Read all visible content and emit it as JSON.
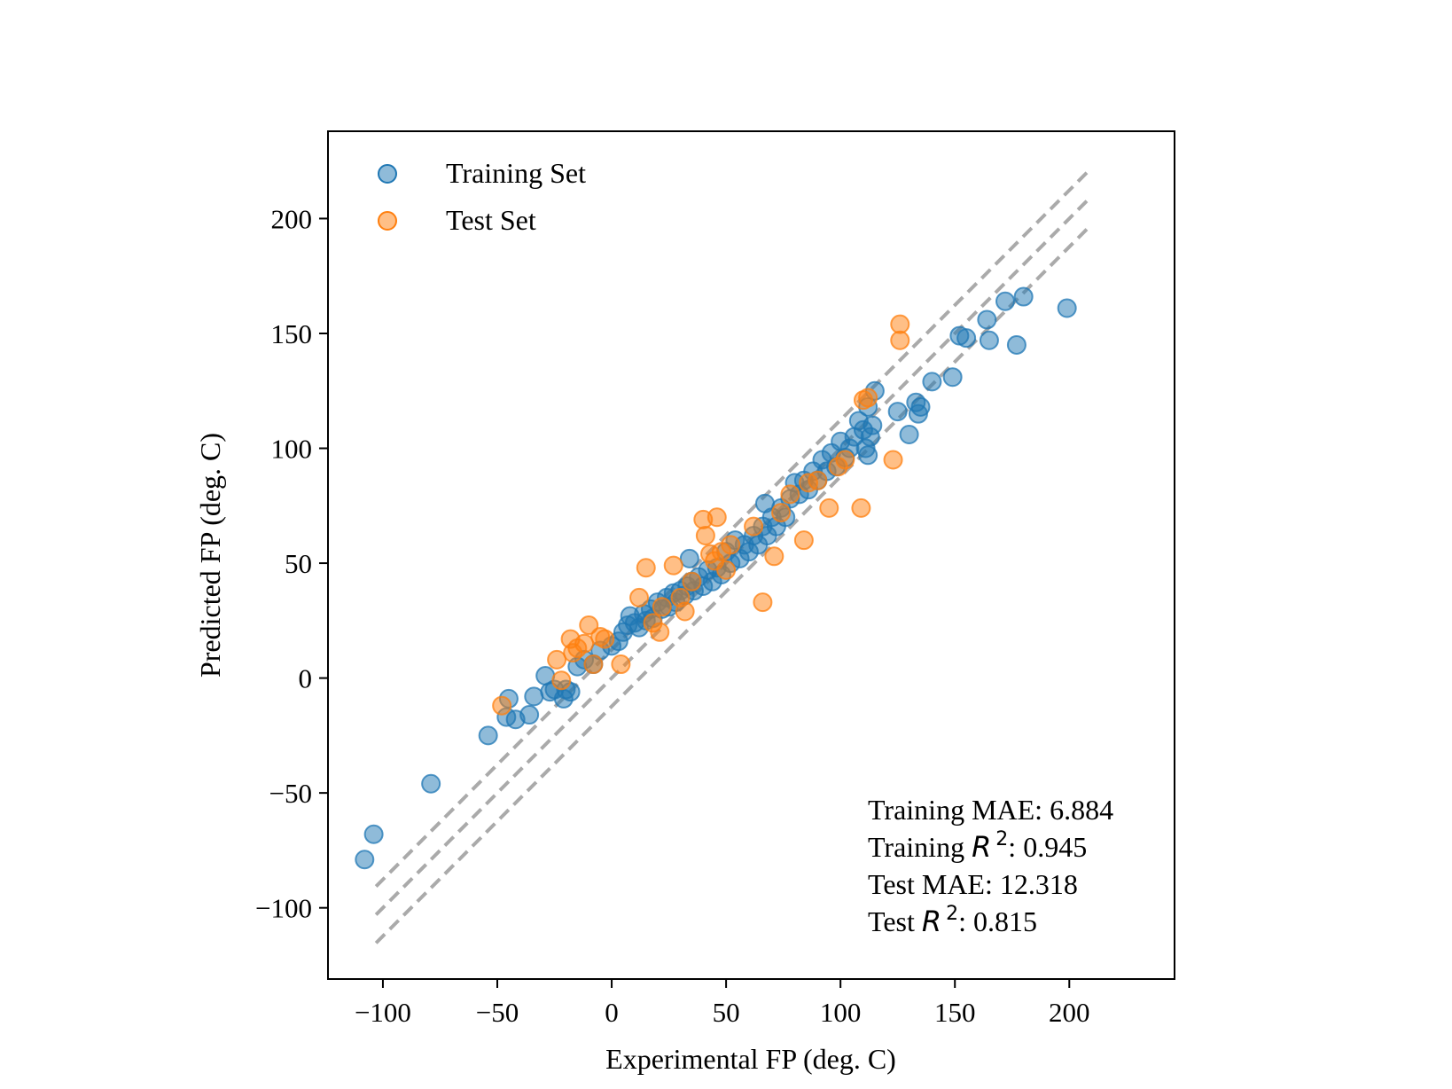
{
  "chart_data": {
    "type": "scatter",
    "title": "",
    "xlabel": "Experimental FP (deg. C)",
    "ylabel": "Predicted FP (deg. C)",
    "xlim": [
      -124,
      246
    ],
    "ylim": [
      -131,
      238
    ],
    "xticks": [
      -100,
      -50,
      0,
      50,
      100,
      150,
      200
    ],
    "yticks": [
      -100,
      -50,
      0,
      50,
      100,
      150,
      200
    ],
    "xtick_labels": [
      "−100",
      "−50",
      "0",
      "50",
      "100",
      "150",
      "200"
    ],
    "ytick_labels": [
      "−100",
      "−50",
      "0",
      "50",
      "100",
      "150",
      "200"
    ],
    "grid": false,
    "legend_position": "top-left",
    "reference_lines": [
      {
        "style": "dashed",
        "color": "#aaaaaa",
        "offset": 12.318,
        "x_range": [
          -103,
          208
        ]
      },
      {
        "style": "dashed",
        "color": "#aaaaaa",
        "offset": 0,
        "x_range": [
          -103,
          208
        ]
      },
      {
        "style": "dashed",
        "color": "#aaaaaa",
        "offset": -12.318,
        "x_range": [
          -103,
          208
        ]
      }
    ],
    "series": [
      {
        "name": "Training Set",
        "color": "#1f77b4",
        "alpha": 0.5,
        "points": [
          [
            -108,
            -79
          ],
          [
            -104,
            -68
          ],
          [
            -79,
            -46
          ],
          [
            -54,
            -25
          ],
          [
            -46,
            -17
          ],
          [
            -45,
            -9
          ],
          [
            -42,
            -18
          ],
          [
            -36,
            -16
          ],
          [
            -34,
            -8
          ],
          [
            -29,
            1
          ],
          [
            -27,
            -6
          ],
          [
            -25,
            -5
          ],
          [
            -21,
            -9
          ],
          [
            -20,
            -5
          ],
          [
            -18,
            -6
          ],
          [
            -15,
            5
          ],
          [
            -12,
            8
          ],
          [
            -8,
            6
          ],
          [
            -5,
            12
          ],
          [
            0,
            14
          ],
          [
            3,
            16
          ],
          [
            5,
            20
          ],
          [
            7,
            23
          ],
          [
            8,
            27
          ],
          [
            10,
            24
          ],
          [
            12,
            22
          ],
          [
            14,
            28
          ],
          [
            15,
            25
          ],
          [
            17,
            30
          ],
          [
            18,
            26
          ],
          [
            20,
            33
          ],
          [
            22,
            30
          ],
          [
            24,
            35
          ],
          [
            25,
            31
          ],
          [
            27,
            37
          ],
          [
            28,
            33
          ],
          [
            30,
            38
          ],
          [
            32,
            36
          ],
          [
            33,
            40
          ],
          [
            34,
            52
          ],
          [
            35,
            42
          ],
          [
            36,
            38
          ],
          [
            38,
            44
          ],
          [
            40,
            40
          ],
          [
            42,
            47
          ],
          [
            44,
            42
          ],
          [
            46,
            48
          ],
          [
            48,
            45
          ],
          [
            50,
            55
          ],
          [
            52,
            50
          ],
          [
            54,
            60
          ],
          [
            56,
            52
          ],
          [
            58,
            58
          ],
          [
            60,
            55
          ],
          [
            62,
            62
          ],
          [
            64,
            58
          ],
          [
            66,
            66
          ],
          [
            67,
            76
          ],
          [
            68,
            62
          ],
          [
            70,
            70
          ],
          [
            72,
            66
          ],
          [
            74,
            74
          ],
          [
            76,
            70
          ],
          [
            78,
            78
          ],
          [
            80,
            85
          ],
          [
            82,
            80
          ],
          [
            84,
            86
          ],
          [
            86,
            82
          ],
          [
            88,
            90
          ],
          [
            90,
            86
          ],
          [
            92,
            95
          ],
          [
            94,
            90
          ],
          [
            96,
            98
          ],
          [
            98,
            92
          ],
          [
            100,
            103
          ],
          [
            102,
            96
          ],
          [
            104,
            100
          ],
          [
            106,
            105
          ],
          [
            108,
            112
          ],
          [
            110,
            108
          ],
          [
            111,
            100
          ],
          [
            112,
            97
          ],
          [
            112,
            118
          ],
          [
            113,
            105
          ],
          [
            114,
            110
          ],
          [
            115,
            125
          ],
          [
            125,
            116
          ],
          [
            130,
            106
          ],
          [
            133,
            120
          ],
          [
            134,
            115
          ],
          [
            135,
            118
          ],
          [
            140,
            129
          ],
          [
            149,
            131
          ],
          [
            152,
            149
          ],
          [
            155,
            148
          ],
          [
            164,
            156
          ],
          [
            165,
            147
          ],
          [
            172,
            164
          ],
          [
            177,
            145
          ],
          [
            180,
            166
          ],
          [
            199,
            161
          ]
        ]
      },
      {
        "name": "Test Set",
        "color": "#ff7f0e",
        "alpha": 0.5,
        "points": [
          [
            -48,
            -12
          ],
          [
            -24,
            8
          ],
          [
            -22,
            -1
          ],
          [
            -18,
            17
          ],
          [
            -17,
            11
          ],
          [
            -15,
            13
          ],
          [
            -12,
            15
          ],
          [
            -10,
            23
          ],
          [
            -8,
            6
          ],
          [
            -5,
            18
          ],
          [
            -3,
            17
          ],
          [
            4,
            6
          ],
          [
            12,
            35
          ],
          [
            15,
            48
          ],
          [
            18,
            24
          ],
          [
            21,
            20
          ],
          [
            22,
            31
          ],
          [
            27,
            49
          ],
          [
            30,
            35
          ],
          [
            32,
            29
          ],
          [
            35,
            42
          ],
          [
            40,
            69
          ],
          [
            41,
            62
          ],
          [
            43,
            54
          ],
          [
            45,
            51
          ],
          [
            46,
            70
          ],
          [
            48,
            55
          ],
          [
            50,
            47
          ],
          [
            52,
            58
          ],
          [
            62,
            66
          ],
          [
            66,
            33
          ],
          [
            71,
            53
          ],
          [
            74,
            72
          ],
          [
            78,
            80
          ],
          [
            84,
            60
          ],
          [
            86,
            85
          ],
          [
            90,
            86
          ],
          [
            95,
            74
          ],
          [
            99,
            92
          ],
          [
            102,
            95
          ],
          [
            109,
            74
          ],
          [
            110,
            121
          ],
          [
            112,
            122
          ],
          [
            123,
            95
          ],
          [
            126,
            154
          ],
          [
            126,
            147
          ]
        ]
      }
    ],
    "annotations": {
      "training_mae": "Training MAE: 6.884",
      "training_r2_prefix": "Training ",
      "test_mae": "Test MAE: 12.318",
      "test_r2_prefix": "Test ",
      "r2_symbol": "R",
      "r2_exponent": "2",
      "training_r2_value": ": 0.945",
      "test_r2_value": ": 0.815"
    }
  }
}
